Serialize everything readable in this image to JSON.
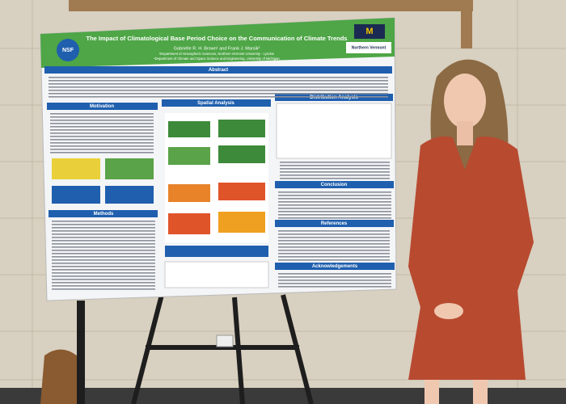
{
  "poster": {
    "title": "The Impact of Climatological Base Period Choice on the Communication of Climate Trends",
    "authors": "Gabrielle R. H. Brown¹ and Frank J. Marsik²",
    "affiliation_1": "¹Department of Atmospheric Sciences, Northern Vermont University - Lyndon",
    "affiliation_2": "²Department of Climate and Space Science and Engineering, University of Michigan",
    "logo_left": "NSF",
    "logo_right": "Northern Vermont",
    "sections": {
      "abstract": "Abstract",
      "motivation": "Motivation",
      "spatial": "Spatial Analysis",
      "distribution": "Distribution Analysis",
      "methods": "Methods",
      "conclusion": "Conclusion",
      "references": "References",
      "acknowledgements": "Acknowledgements"
    }
  }
}
